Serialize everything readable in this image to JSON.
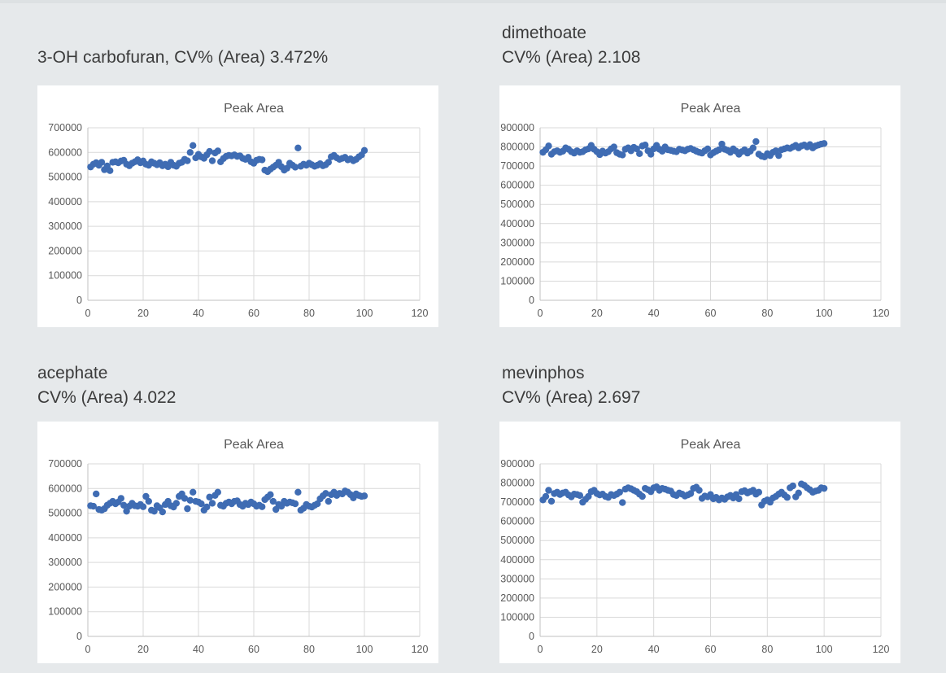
{
  "page": {
    "background": "#e6e9eb",
    "top_edge_color": "#dde1e3",
    "accent_blue": "#3f6cb3"
  },
  "chart_data": [
    {
      "key": "3-oh-carbofuran",
      "type": "scatter",
      "header_lines": [
        "3-OH carbofuran, CV% (Area) 3.472%"
      ],
      "title": "Peak Area",
      "xlabel": "",
      "ylabel": "",
      "xlim": [
        0,
        120
      ],
      "ylim": [
        0,
        700000
      ],
      "xticks": [
        0,
        20,
        40,
        60,
        80,
        100,
        120
      ],
      "yticks": [
        0,
        100000,
        200000,
        300000,
        400000,
        500000,
        600000,
        700000
      ],
      "grid": true,
      "legend": "none",
      "marker_color": "#3f6cb3",
      "grid_color": "#d9d9d9",
      "axis_color": "#c2c2c2",
      "x_start": 1,
      "y": [
        541000,
        552000,
        558000,
        548000,
        560000,
        530000,
        545000,
        526000,
        560000,
        562000,
        558000,
        565000,
        568000,
        552000,
        546000,
        556000,
        562000,
        570000,
        558000,
        565000,
        552000,
        548000,
        562000,
        556000,
        550000,
        558000,
        546000,
        552000,
        542000,
        560000,
        548000,
        544000,
        556000,
        560000,
        572000,
        566000,
        600000,
        628000,
        578000,
        592000,
        582000,
        576000,
        590000,
        604000,
        566000,
        598000,
        606000,
        562000,
        575000,
        584000,
        588000,
        586000,
        590000,
        584000,
        586000,
        576000,
        572000,
        580000,
        562000,
        556000,
        568000,
        572000,
        570000,
        528000,
        522000,
        532000,
        540000,
        548000,
        560000,
        542000,
        528000,
        536000,
        556000,
        548000,
        540000,
        618000,
        544000,
        552000,
        548000,
        556000,
        550000,
        544000,
        548000,
        554000,
        546000,
        550000,
        560000,
        582000,
        588000,
        578000,
        572000,
        576000,
        580000,
        570000,
        574000,
        566000,
        572000,
        582000,
        590000,
        608000
      ]
    },
    {
      "key": "dimethoate",
      "type": "scatter",
      "header_lines": [
        "dimethoate",
        "CV% (Area) 2.108"
      ],
      "title": "Peak Area",
      "xlabel": "",
      "ylabel": "",
      "xlim": [
        0,
        120
      ],
      "ylim": [
        0,
        900000
      ],
      "xticks": [
        0,
        20,
        40,
        60,
        80,
        100,
        120
      ],
      "yticks": [
        0,
        100000,
        200000,
        300000,
        400000,
        500000,
        600000,
        700000,
        800000,
        900000
      ],
      "grid": true,
      "legend": "none",
      "marker_color": "#3f6cb3",
      "grid_color": "#d9d9d9",
      "axis_color": "#c2c2c2",
      "x_start": 1,
      "y": [
        772000,
        785000,
        805000,
        762000,
        775000,
        780000,
        772000,
        778000,
        795000,
        788000,
        775000,
        768000,
        780000,
        772000,
        775000,
        785000,
        790000,
        808000,
        788000,
        775000,
        760000,
        778000,
        768000,
        775000,
        790000,
        800000,
        770000,
        762000,
        758000,
        788000,
        795000,
        780000,
        798000,
        790000,
        765000,
        805000,
        810000,
        780000,
        762000,
        790000,
        808000,
        788000,
        778000,
        800000,
        785000,
        782000,
        778000,
        775000,
        788000,
        784000,
        780000,
        788000,
        792000,
        785000,
        778000,
        772000,
        768000,
        780000,
        790000,
        758000,
        770000,
        778000,
        785000,
        815000,
        788000,
        782000,
        772000,
        790000,
        778000,
        762000,
        775000,
        785000,
        768000,
        778000,
        795000,
        828000,
        762000,
        752000,
        748000,
        765000,
        755000,
        772000,
        780000,
        755000,
        785000,
        790000,
        795000,
        792000,
        800000,
        808000,
        795000,
        805000,
        810000,
        800000,
        812000,
        795000,
        805000,
        810000,
        815000,
        818000
      ]
    },
    {
      "key": "acephate",
      "type": "scatter",
      "header_lines": [
        "acephate",
        "CV% (Area) 4.022"
      ],
      "title": "Peak Area",
      "xlabel": "",
      "ylabel": "",
      "xlim": [
        0,
        120
      ],
      "ylim": [
        0,
        700000
      ],
      "xticks": [
        0,
        20,
        40,
        60,
        80,
        100,
        120
      ],
      "yticks": [
        0,
        100000,
        200000,
        300000,
        400000,
        500000,
        600000,
        700000
      ],
      "grid": true,
      "legend": "none",
      "marker_color": "#3f6cb3",
      "grid_color": "#d9d9d9",
      "axis_color": "#c2c2c2",
      "x_start": 1,
      "y": [
        530000,
        528000,
        578000,
        515000,
        512000,
        518000,
        532000,
        540000,
        548000,
        538000,
        545000,
        560000,
        532000,
        508000,
        528000,
        540000,
        530000,
        528000,
        535000,
        526000,
        568000,
        548000,
        512000,
        508000,
        530000,
        522000,
        505000,
        535000,
        548000,
        530000,
        525000,
        540000,
        568000,
        578000,
        560000,
        518000,
        552000,
        585000,
        548000,
        545000,
        538000,
        512000,
        525000,
        565000,
        540000,
        572000,
        585000,
        532000,
        528000,
        540000,
        545000,
        538000,
        548000,
        550000,
        535000,
        528000,
        540000,
        535000,
        545000,
        538000,
        528000,
        532000,
        526000,
        555000,
        565000,
        575000,
        548000,
        515000,
        535000,
        528000,
        548000,
        540000,
        545000,
        542000,
        538000,
        585000,
        512000,
        520000,
        535000,
        528000,
        525000,
        532000,
        538000,
        558000,
        570000,
        580000,
        548000,
        575000,
        585000,
        572000,
        580000,
        578000,
        590000,
        585000,
        575000,
        562000,
        578000,
        572000,
        568000,
        570000
      ]
    },
    {
      "key": "mevinphos",
      "type": "scatter",
      "header_lines": [
        "mevinphos",
        "CV% (Area) 2.697"
      ],
      "title": "Peak Area",
      "xlabel": "",
      "ylabel": "",
      "xlim": [
        0,
        120
      ],
      "ylim": [
        0,
        900000
      ],
      "xticks": [
        0,
        20,
        40,
        60,
        80,
        100,
        120
      ],
      "yticks": [
        0,
        100000,
        200000,
        300000,
        400000,
        500000,
        600000,
        700000,
        800000,
        900000
      ],
      "grid": true,
      "legend": "none",
      "marker_color": "#3f6cb3",
      "grid_color": "#d9d9d9",
      "axis_color": "#c2c2c2",
      "x_start": 1,
      "y": [
        712000,
        730000,
        762000,
        705000,
        745000,
        752000,
        740000,
        748000,
        752000,
        738000,
        728000,
        742000,
        740000,
        735000,
        700000,
        715000,
        730000,
        755000,
        762000,
        745000,
        738000,
        742000,
        730000,
        725000,
        740000,
        735000,
        742000,
        752000,
        698000,
        768000,
        775000,
        770000,
        762000,
        755000,
        742000,
        730000,
        772000,
        765000,
        755000,
        775000,
        780000,
        762000,
        772000,
        768000,
        762000,
        758000,
        740000,
        735000,
        748000,
        742000,
        732000,
        738000,
        745000,
        772000,
        778000,
        762000,
        720000,
        732000,
        728000,
        740000,
        718000,
        725000,
        712000,
        722000,
        715000,
        728000,
        735000,
        722000,
        740000,
        718000,
        755000,
        760000,
        748000,
        755000,
        762000,
        742000,
        752000,
        685000,
        705000,
        712000,
        700000,
        722000,
        730000,
        742000,
        752000,
        738000,
        725000,
        775000,
        785000,
        728000,
        748000,
        795000,
        788000,
        775000,
        765000,
        752000,
        758000,
        762000,
        775000,
        772000
      ]
    }
  ]
}
